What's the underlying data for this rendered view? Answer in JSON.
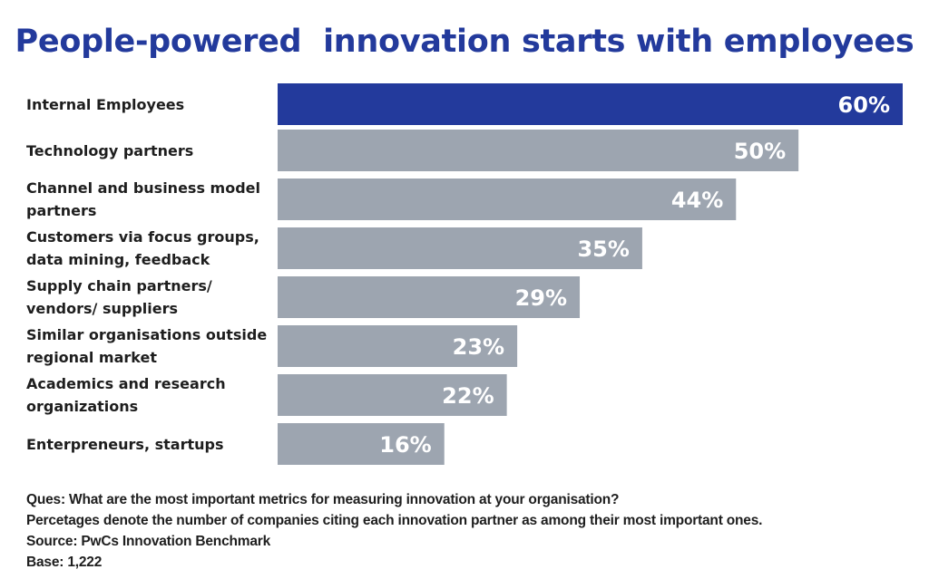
{
  "chart_data": {
    "type": "bar",
    "orientation": "horizontal",
    "title": "People-powered  innovation starts with employees",
    "categories": [
      "Internal Employees",
      "Technology partners",
      "Channel and business model partners",
      "Customers via focus groups, data mining, feedback",
      "Supply chain partners/ vendors/ suppliers",
      "Similar organisations outside regional market",
      "Academics and research organizations",
      "Enterpreneurs, startups"
    ],
    "category_lines": [
      [
        "Internal Employees"
      ],
      [
        "Technology partners"
      ],
      [
        "Channel and business model",
        "partners"
      ],
      [
        "Customers via focus groups,",
        "data mining, feedback"
      ],
      [
        "Supply chain partners/",
        "vendors/ suppliers"
      ],
      [
        "Similar organisations outside",
        "regional market"
      ],
      [
        "Academics and research",
        "organizations"
      ],
      [
        "Enterpreneurs, startups"
      ]
    ],
    "values": [
      60,
      50,
      44,
      35,
      29,
      23,
      22,
      16
    ],
    "data_labels": [
      "60%",
      "50%",
      "44%",
      "35%",
      "29%",
      "23%",
      "22%",
      "16%"
    ],
    "xlim": [
      0,
      60
    ],
    "grid": false,
    "legend": "none",
    "colors": {
      "highlight": "#233a9c",
      "default": "#9da5b0",
      "title": "#233a9c",
      "label_text": "#ffffff"
    }
  },
  "notes": [
    "Ques: What are the most important metrics for measuring innovation at your organisation?",
    "Percetages denote the number of companies citing each innovation partner as among their most important ones.",
    "Source: PwCs Innovation Benchmark",
    "Base: 1,222"
  ]
}
